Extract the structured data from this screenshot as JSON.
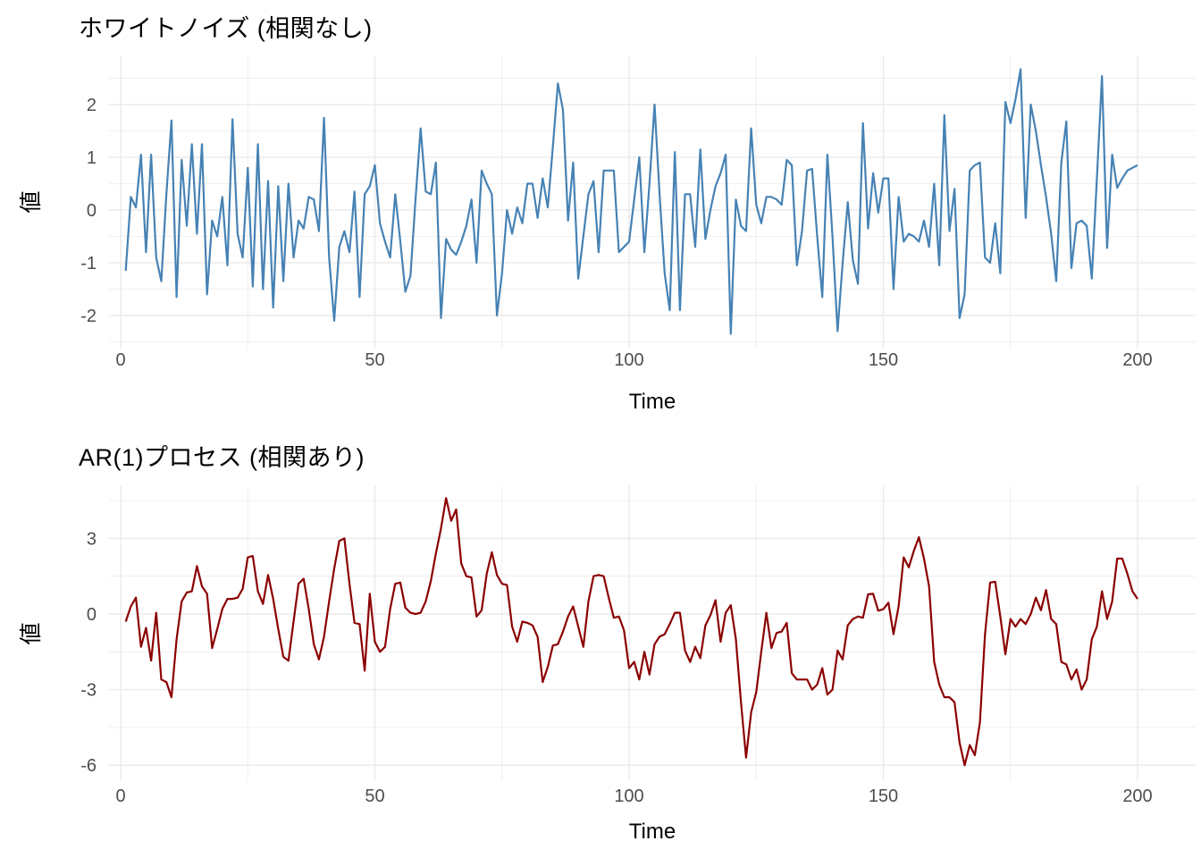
{
  "page": {
    "background": "#FFFFFF"
  },
  "chart_data": [
    {
      "type": "line",
      "title": "ホワイトノイズ (相関なし)",
      "xlabel": "Time",
      "ylabel": "値",
      "line_color": "#4682B4",
      "grid_color": "#EBEBEB",
      "tick_label_color": "#4D4D4D",
      "x_start": 1,
      "x_ticks": [
        0,
        50,
        100,
        150,
        200
      ],
      "x_minor_ticks": [
        25,
        75,
        125,
        175
      ],
      "y_ticks": [
        -2,
        -1,
        0,
        1,
        2
      ],
      "y_minor_ticks": [
        -2.5,
        -1.5,
        -0.5,
        0.5,
        1.5,
        2.5
      ],
      "xlim": [
        -2,
        211
      ],
      "ylim": [
        -2.65,
        2.93
      ],
      "legend": "none",
      "values": [
        -1.15,
        0.25,
        0.05,
        1.05,
        -0.8,
        1.05,
        -0.9,
        -1.35,
        0.3,
        1.7,
        -1.65,
        0.95,
        -0.3,
        1.25,
        -0.45,
        1.25,
        -1.6,
        -0.2,
        -0.5,
        0.25,
        -1.05,
        1.72,
        -0.45,
        -0.9,
        0.8,
        -1.45,
        1.25,
        -1.5,
        0.55,
        -1.85,
        0.45,
        -1.35,
        0.5,
        -0.9,
        -0.2,
        -0.35,
        0.25,
        0.2,
        -0.4,
        1.75,
        -0.9,
        -2.1,
        -0.7,
        -0.4,
        -0.8,
        0.35,
        -1.65,
        0.3,
        0.45,
        0.85,
        -0.25,
        -0.6,
        -0.9,
        0.3,
        -0.6,
        -1.55,
        -1.25,
        0.2,
        1.55,
        0.35,
        0.3,
        0.9,
        -2.05,
        -0.55,
        -0.75,
        -0.85,
        -0.6,
        -0.3,
        0.2,
        -1.0,
        0.75,
        0.5,
        0.3,
        -2.0,
        -1.2,
        0.0,
        -0.45,
        0.05,
        -0.25,
        0.5,
        0.5,
        -0.15,
        0.6,
        0.05,
        1.2,
        2.4,
        1.9,
        -0.2,
        0.9,
        -1.3,
        -0.5,
        0.3,
        0.55,
        -0.8,
        0.75,
        0.75,
        0.75,
        -0.8,
        -0.7,
        -0.6,
        0.2,
        1.0,
        -0.8,
        0.5,
        2.0,
        0.3,
        -1.2,
        -1.9,
        1.1,
        -1.9,
        0.3,
        0.3,
        -0.7,
        1.15,
        -0.55,
        0.0,
        0.45,
        0.7,
        1.05,
        -2.35,
        0.2,
        -0.3,
        -0.4,
        1.55,
        0.1,
        -0.25,
        0.25,
        0.25,
        0.2,
        0.1,
        0.95,
        0.85,
        -1.05,
        -0.4,
        0.75,
        0.78,
        -0.5,
        -1.65,
        1.05,
        -0.5,
        -2.3,
        -1.0,
        0.15,
        -0.95,
        -1.4,
        1.65,
        -0.35,
        0.7,
        -0.05,
        0.6,
        0.6,
        -1.5,
        0.25,
        -0.6,
        -0.45,
        -0.5,
        -0.6,
        -0.2,
        -0.7,
        0.5,
        -1.05,
        1.8,
        -0.4,
        0.4,
        -2.05,
        -1.6,
        0.75,
        0.85,
        0.9,
        -0.9,
        -1.0,
        -0.25,
        -1.2,
        2.05,
        1.65,
        2.1,
        2.67,
        -0.15,
        2.0,
        1.5,
        0.85,
        0.25,
        -0.45,
        -1.35,
        0.9,
        1.68,
        -1.1,
        -0.25,
        -0.2,
        -0.3,
        -1.3,
        0.6,
        2.54,
        -0.72,
        1.05,
        0.42,
        0.6,
        0.75,
        0.8,
        0.85
      ]
    },
    {
      "type": "line",
      "title": "AR(1)プロセス (相関あり)",
      "xlabel": "Time",
      "ylabel": "値",
      "line_color": "#8B0000",
      "grid_color": "#EBEBEB",
      "tick_label_color": "#4D4D4D",
      "x_start": 1,
      "x_ticks": [
        0,
        50,
        100,
        150,
        200
      ],
      "x_minor_ticks": [
        25,
        75,
        125,
        175
      ],
      "y_ticks": [
        -6,
        -3,
        0,
        3
      ],
      "y_minor_ticks": [
        -4.5,
        -1.5,
        1.5,
        4.5
      ],
      "xlim": [
        -2,
        211
      ],
      "ylim": [
        -6.6,
        5.1
      ],
      "legend": "none",
      "values": [
        -0.3,
        0.3,
        0.65,
        -1.3,
        -0.55,
        -1.85,
        0.05,
        -2.6,
        -2.7,
        -3.3,
        -1.0,
        0.5,
        0.85,
        0.9,
        1.9,
        1.1,
        0.8,
        -1.35,
        -0.6,
        0.2,
        0.6,
        0.6,
        0.65,
        1.0,
        2.25,
        2.3,
        0.9,
        0.4,
        1.55,
        0.6,
        -0.6,
        -1.7,
        -1.85,
        -0.3,
        1.2,
        1.4,
        0.2,
        -1.2,
        -1.8,
        -0.9,
        0.5,
        1.8,
        2.9,
        3.0,
        1.2,
        -0.35,
        -0.4,
        -2.25,
        0.8,
        -1.1,
        -1.5,
        -1.3,
        0.2,
        1.2,
        1.25,
        0.25,
        0.05,
        0.0,
        0.05,
        0.5,
        1.3,
        2.4,
        3.4,
        4.6,
        3.7,
        4.15,
        2.0,
        1.5,
        1.45,
        -0.1,
        0.15,
        1.6,
        2.45,
        1.55,
        1.2,
        1.15,
        -0.5,
        -1.1,
        -0.3,
        -0.35,
        -0.45,
        -0.9,
        -2.7,
        -2.1,
        -1.25,
        -1.2,
        -0.7,
        -0.1,
        0.3,
        -0.5,
        -1.3,
        0.5,
        1.5,
        1.55,
        1.5,
        0.65,
        -0.15,
        -0.1,
        -0.65,
        -2.15,
        -1.9,
        -2.6,
        -1.5,
        -2.4,
        -1.2,
        -0.9,
        -0.8,
        -0.4,
        0.05,
        0.05,
        -1.45,
        -1.9,
        -1.3,
        -1.75,
        -0.45,
        -0.05,
        0.55,
        -1.1,
        0.05,
        0.35,
        -1.0,
        -3.5,
        -5.7,
        -3.9,
        -3.1,
        -1.5,
        0.05,
        -1.35,
        -0.75,
        -0.7,
        -0.35,
        -2.35,
        -2.6,
        -2.6,
        -2.6,
        -3.0,
        -2.8,
        -2.15,
        -3.2,
        -3.0,
        -1.45,
        -1.8,
        -0.45,
        -0.2,
        -0.1,
        -0.15,
        0.78,
        0.8,
        0.13,
        0.19,
        0.45,
        -0.8,
        0.3,
        2.25,
        1.85,
        2.5,
        3.05,
        2.2,
        1.1,
        -1.9,
        -2.8,
        -3.3,
        -3.3,
        -3.5,
        -5.1,
        -6.0,
        -5.2,
        -5.6,
        -4.3,
        -0.8,
        1.25,
        1.28,
        -0.1,
        -1.6,
        -0.2,
        -0.5,
        -0.2,
        -0.4,
        0.0,
        0.65,
        0.15,
        0.95,
        -0.2,
        -0.4,
        -1.9,
        -2.0,
        -2.6,
        -2.2,
        -3.0,
        -2.6,
        -1.0,
        -0.5,
        0.9,
        -0.2,
        0.5,
        2.2,
        2.2,
        1.6,
        0.9,
        0.6
      ]
    }
  ]
}
